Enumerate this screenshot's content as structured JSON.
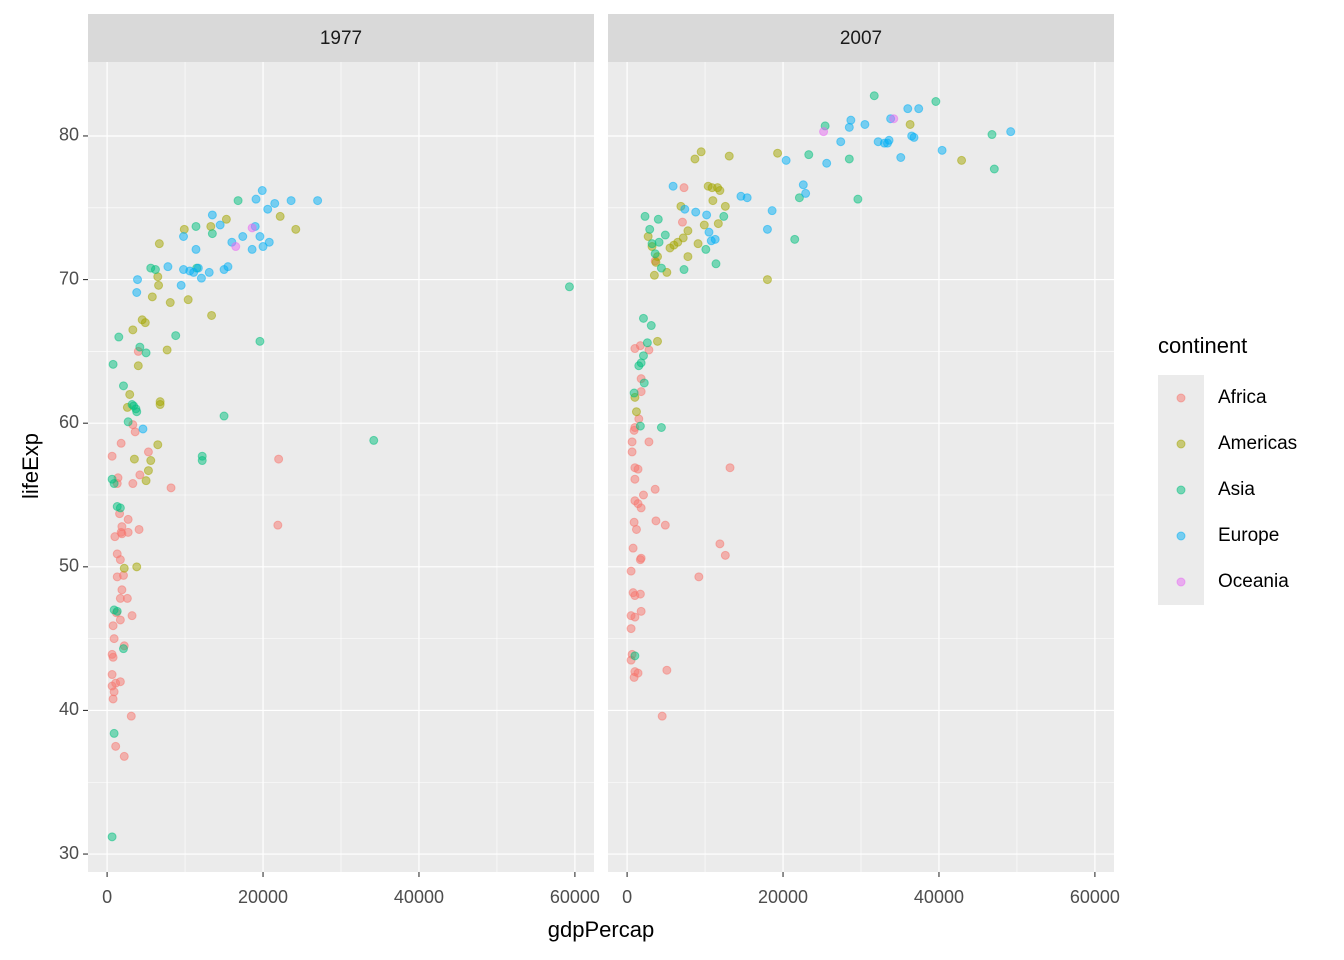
{
  "chart_data": {
    "type": "scatter",
    "x_label": "gdpPercap",
    "y_label": "lifeExp",
    "legend_title": "continent",
    "xlim": [
      -2450,
      62450
    ],
    "ylim": [
      28.75,
      85.15
    ],
    "xticks": [
      0,
      20000,
      40000,
      60000
    ],
    "yticks": [
      30,
      40,
      50,
      60,
      70,
      80
    ],
    "grid": true,
    "legend": "right",
    "point_opacity": 0.5,
    "series": [
      {
        "name": "Africa",
        "color": "#F8766D"
      },
      {
        "name": "Americas",
        "color": "#A3A500"
      },
      {
        "name": "Asia",
        "color": "#00BF7D"
      },
      {
        "name": "Europe",
        "color": "#00B0F6"
      },
      {
        "name": "Oceania",
        "color": "#E76BF3"
      }
    ],
    "facets": [
      {
        "title": "1977",
        "series": [
          {
            "x": [
              640,
              1400,
              1800,
              3300,
              5300,
              8200,
              22000,
              21900,
              3300,
              3600,
              4000,
              4200,
              4100,
              2700,
              2700,
              2600,
              3200,
              3100,
              1000,
              1300,
              1700,
              1900,
              1800,
              1300,
              1900,
              1700,
              1200,
              1700,
              770,
              900,
              640,
              770,
              640,
              770,
              900,
              640,
              1100,
              1700,
              2200,
              1100,
              2200,
              1300,
              1600,
              1900,
              2100
            ],
            "y": [
              57.7,
              56.2,
              58.6,
              55.8,
              58.0,
              55.5,
              57.5,
              52.9,
              59.9,
              59.4,
              65.0,
              56.4,
              52.6,
              53.3,
              52.4,
              47.8,
              46.6,
              39.6,
              52.1,
              50.9,
              50.5,
              52.8,
              52.4,
              49.3,
              48.4,
              47.8,
              46.8,
              46.3,
              45.9,
              45.0,
              43.9,
              43.7,
              41.7,
              40.8,
              41.3,
              42.5,
              41.9,
              42.0,
              44.5,
              37.5,
              36.8,
              55.8,
              53.7,
              52.3,
              49.4
            ]
          },
          {
            "x": [
              6700,
              6500,
              6600,
              5800,
              8100,
              10400,
              9900,
              13300,
              15300,
              22200,
              24200,
              13400,
              7700,
              4500,
              4900,
              4000,
              3300,
              2900,
              2600,
              6800,
              6800,
              6500,
              5600,
              5300,
              5000,
              3500,
              3800,
              2200
            ],
            "y": [
              72.5,
              70.2,
              69.6,
              68.8,
              68.4,
              68.6,
              73.5,
              73.7,
              74.2,
              74.4,
              73.5,
              67.5,
              65.1,
              67.2,
              67.0,
              64.0,
              66.5,
              62.0,
              61.1,
              61.5,
              61.3,
              58.5,
              57.4,
              56.7,
              56.0,
              57.5,
              50.0,
              49.9
            ]
          },
          {
            "x": [
              770,
              1500,
              640,
              900,
              1300,
              1700,
              900,
              1300,
              2100,
              900,
              640,
              2100,
              2700,
              3200,
              3400,
              3700,
              3800,
              4200,
              5000,
              5600,
              6200,
              8800,
              11400,
              11500,
              12200,
              12200,
              13500,
              15000,
              19600,
              16800,
              34200,
              59300
            ],
            "y": [
              64.1,
              66.0,
              56.1,
              55.8,
              54.2,
              54.1,
              47.0,
              46.9,
              44.3,
              38.4,
              31.2,
              62.6,
              60.1,
              61.3,
              61.2,
              61.0,
              60.8,
              65.3,
              64.9,
              70.8,
              70.7,
              66.1,
              73.7,
              70.8,
              57.7,
              57.4,
              73.2,
              60.5,
              65.7,
              75.5,
              58.8,
              69.5
            ]
          },
          {
            "x": [
              3800,
              3900,
              4600,
              7800,
              9500,
              9800,
              10600,
              9800,
              11100,
              11400,
              11700,
              12100,
              13100,
              13500,
              14500,
              15000,
              15500,
              16000,
              17400,
              18600,
              19000,
              19600,
              19900,
              19100,
              20000,
              20600,
              20800,
              21500,
              23600,
              27000
            ],
            "y": [
              69.1,
              70.0,
              59.6,
              70.9,
              69.6,
              70.7,
              70.6,
              73.0,
              70.5,
              72.1,
              70.8,
              70.1,
              70.5,
              74.5,
              73.8,
              70.7,
              70.9,
              72.6,
              73.0,
              72.1,
              73.7,
              73.0,
              76.2,
              75.6,
              72.3,
              74.9,
              72.6,
              75.3,
              75.5,
              75.5
            ]
          },
          {
            "x": [
              16500,
              18600
            ],
            "y": [
              72.3,
              73.6
            ]
          }
        ]
      },
      {
        "title": "2007",
        "series": [
          {
            "x": [
              510,
              1000,
              510,
              640,
              510,
              1000,
              900,
              1400,
              510,
              770,
              1000,
              1700,
              1800,
              900,
              770,
              1200,
              1000,
              1400,
              1800,
              1000,
              1000,
              1400,
              640,
              640,
              1000,
              900,
              1500,
              1800,
              1800,
              1700,
              1000,
              2800,
              2800,
              2100,
              1700,
              1800,
              3600,
              3700,
              4900,
              5100,
              4500,
              9200,
              7300,
              7100,
              11900,
              12600,
              13200,
              3600
            ],
            "y": [
              46.6,
              46.5,
              45.7,
              43.9,
              43.5,
              42.7,
              42.3,
              42.6,
              49.7,
              48.2,
              48.0,
              48.1,
              46.9,
              53.1,
              51.3,
              52.6,
              54.6,
              54.4,
              54.1,
              56.1,
              56.9,
              56.8,
              58.0,
              58.7,
              59.7,
              59.5,
              60.3,
              63.1,
              62.2,
              65.4,
              65.2,
              65.1,
              58.7,
              55.0,
              50.5,
              50.6,
              55.4,
              53.2,
              52.9,
              42.8,
              39.6,
              49.3,
              76.4,
              74.0,
              51.6,
              50.8,
              56.9,
              71.3
            ]
          },
          {
            "x": [
              2700,
              3200,
              3500,
              3700,
              3900,
              5100,
              5500,
              6000,
              6500,
              6900,
              7200,
              7800,
              7800,
              8700,
              9500,
              9900,
              10400,
              10900,
              11600,
              11700,
              11900,
              12600,
              13100,
              11000,
              9100,
              18000,
              19300,
              1000,
              1200,
              3900,
              36300,
              42900
            ],
            "y": [
              73.0,
              72.3,
              70.3,
              71.2,
              71.6,
              70.5,
              72.2,
              72.4,
              72.6,
              75.1,
              72.9,
              73.4,
              71.6,
              78.4,
              78.9,
              73.8,
              76.5,
              76.4,
              76.4,
              73.9,
              76.2,
              75.1,
              78.6,
              75.5,
              72.5,
              70.0,
              78.8,
              61.8,
              60.8,
              65.7,
              80.8,
              78.3
            ]
          },
          {
            "x": [
              1000,
              900,
              1500,
              1800,
              2100,
              2200,
              2600,
              3100,
              2100,
              1700,
              4400,
              2300,
              2900,
              3200,
              3600,
              4100,
              4400,
              4000,
              4900,
              7300,
              10100,
              11400,
              12400,
              21500,
              22100,
              23300,
              25400,
              28500,
              29600,
              31700,
              39600,
              46800,
              47100
            ],
            "y": [
              43.8,
              62.1,
              64.0,
              64.2,
              64.7,
              62.8,
              65.6,
              66.8,
              67.3,
              59.8,
              59.7,
              74.4,
              73.5,
              72.5,
              71.8,
              72.6,
              70.8,
              74.2,
              73.1,
              70.7,
              72.1,
              71.1,
              74.4,
              72.8,
              75.7,
              78.7,
              80.7,
              78.4,
              75.6,
              82.8,
              82.4,
              80.1,
              77.7
            ]
          },
          {
            "x": [
              5900,
              7400,
              8800,
              10200,
              10500,
              10800,
              11300,
              14600,
              15400,
              18000,
              18600,
              20400,
              22600,
              22900,
              25600,
              27400,
              28500,
              28700,
              30500,
              32200,
              33000,
              33400,
              33600,
              33800,
              35100,
              36000,
              36500,
              36800,
              37400,
              40400,
              49200
            ],
            "y": [
              76.5,
              74.9,
              74.7,
              74.5,
              73.3,
              72.7,
              72.8,
              75.8,
              75.7,
              73.5,
              74.8,
              78.3,
              76.6,
              76.0,
              78.1,
              79.6,
              80.6,
              81.1,
              80.8,
              79.6,
              79.5,
              79.5,
              79.7,
              81.2,
              78.5,
              81.9,
              80.0,
              79.9,
              81.9,
              79.0,
              80.3
            ]
          },
          {
            "x": [
              25200,
              34200
            ],
            "y": [
              80.3,
              81.2
            ]
          }
        ]
      }
    ]
  }
}
